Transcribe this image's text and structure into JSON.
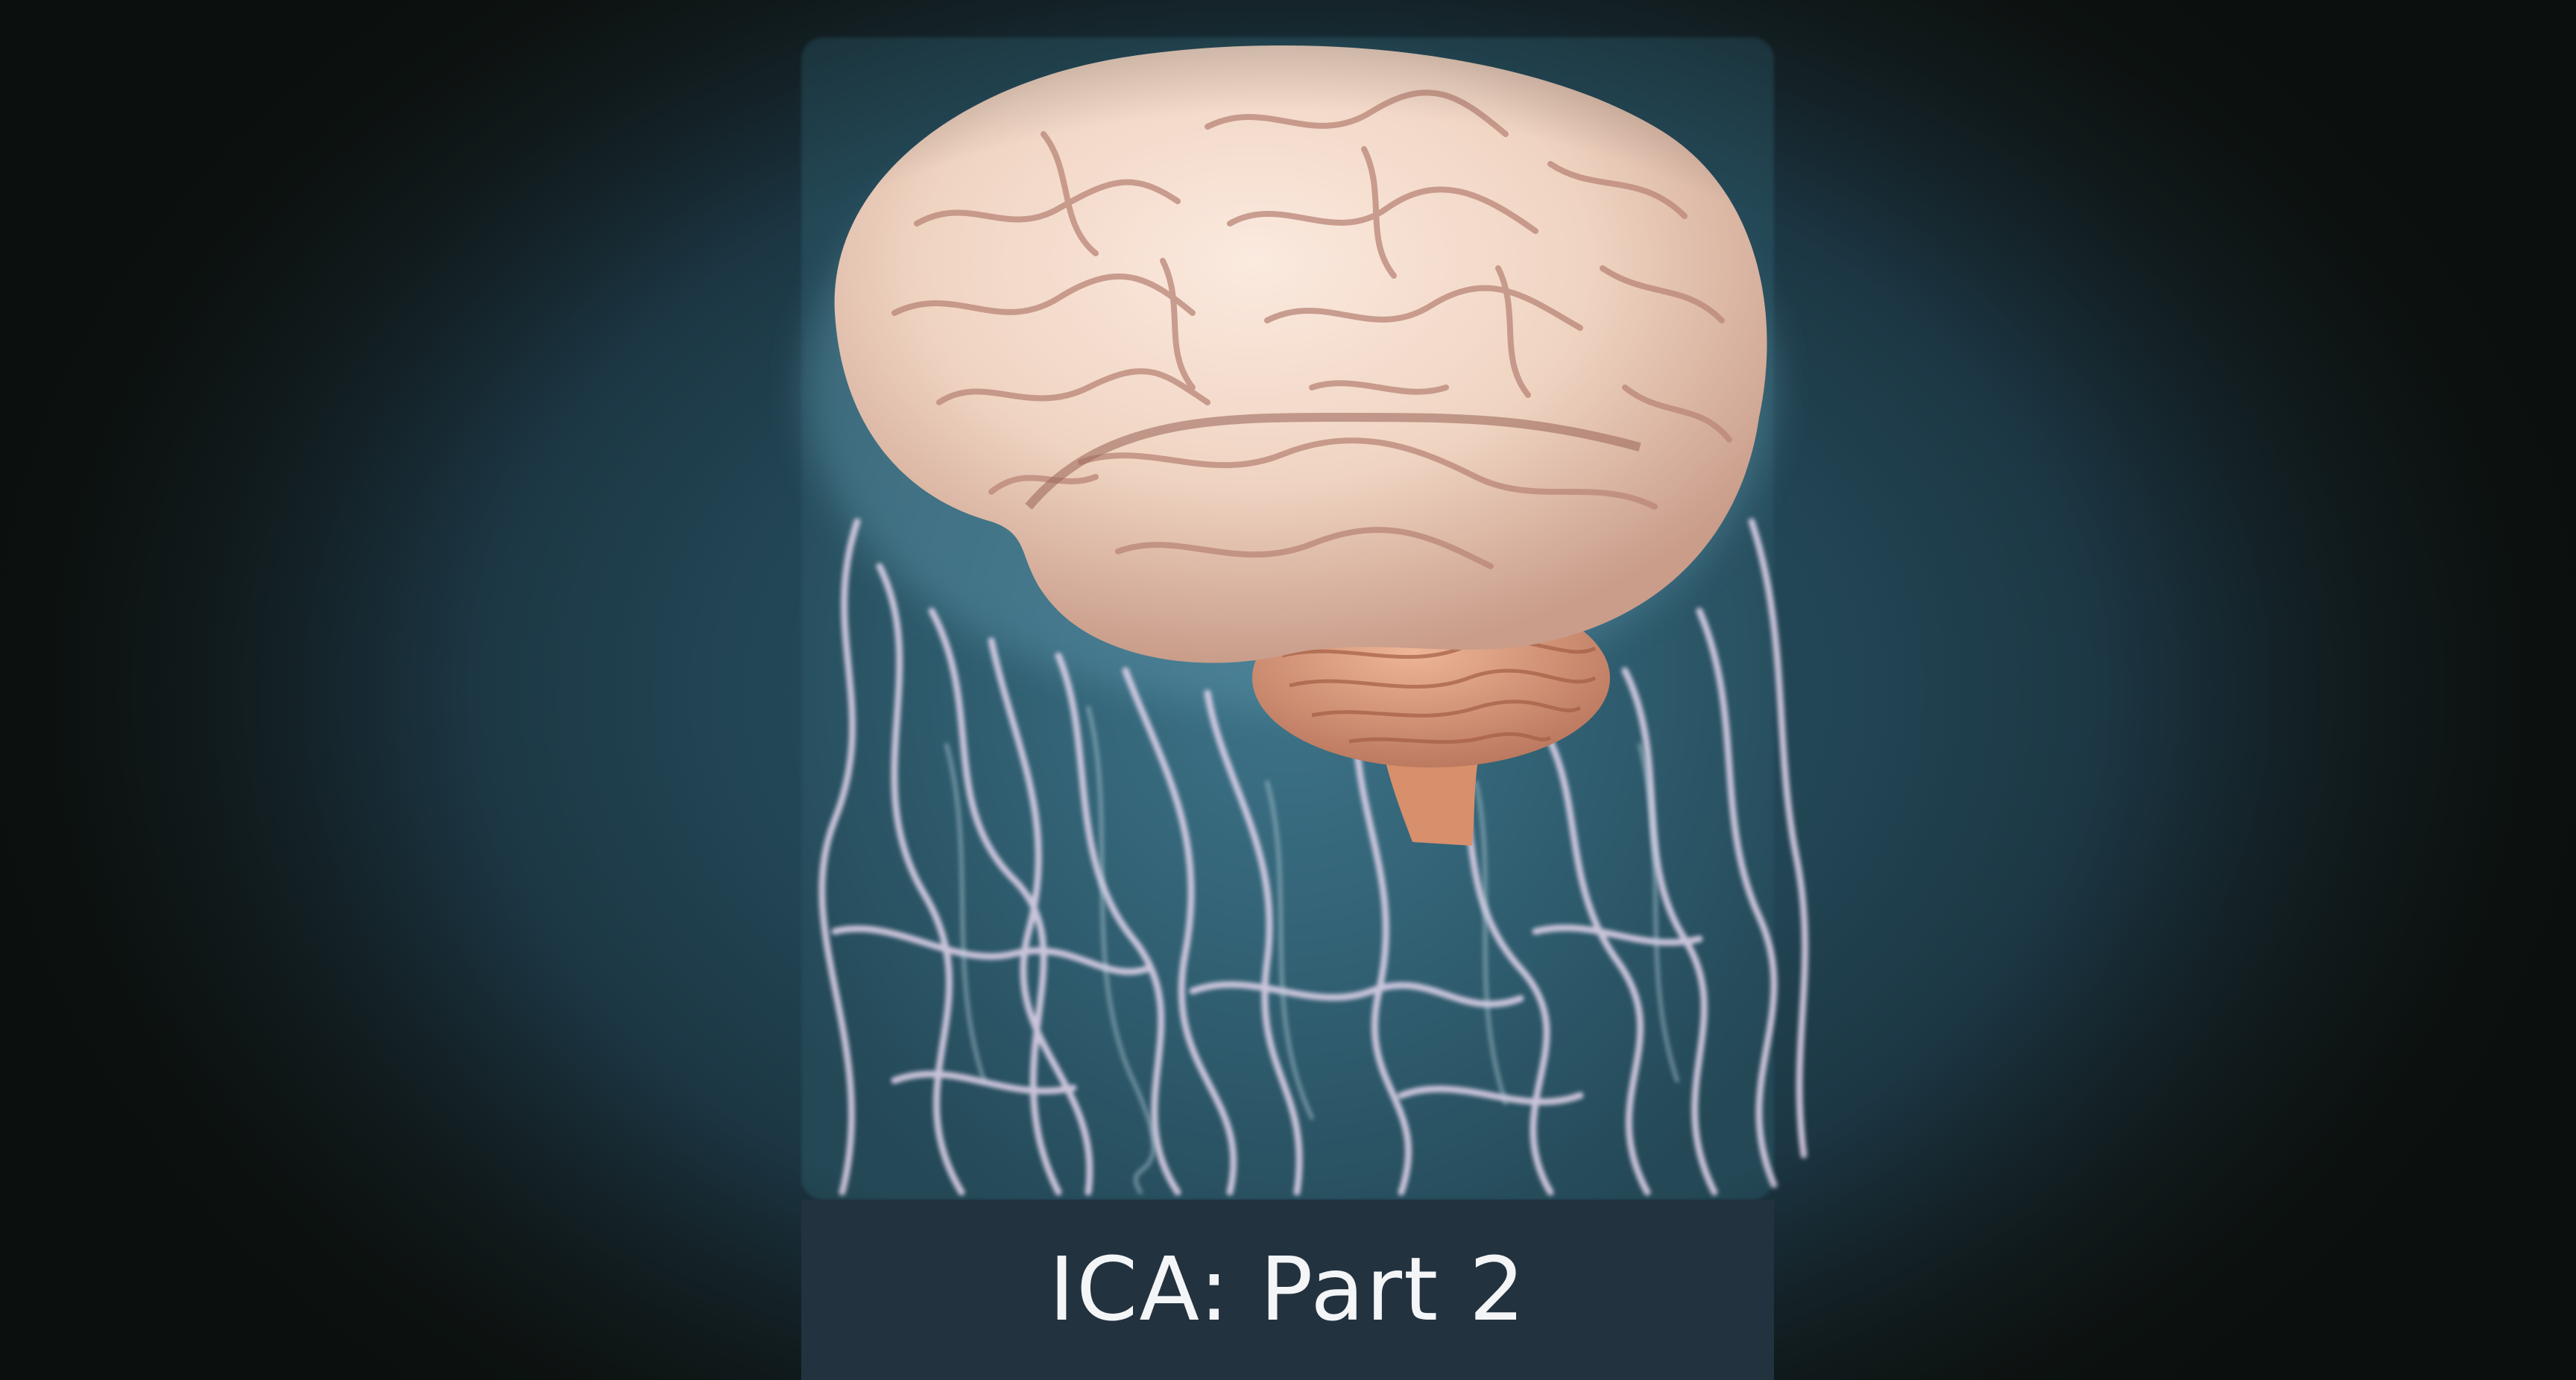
{
  "caption": {
    "title": "ICA: Part 2"
  },
  "image": {
    "subject": "brain-illustration",
    "colors": {
      "background": "#224554",
      "brain": "#f0d6c4",
      "cerebellum": "#d9977a",
      "nerves": "#e8d8ee",
      "caption_bar": "#23323f"
    }
  }
}
